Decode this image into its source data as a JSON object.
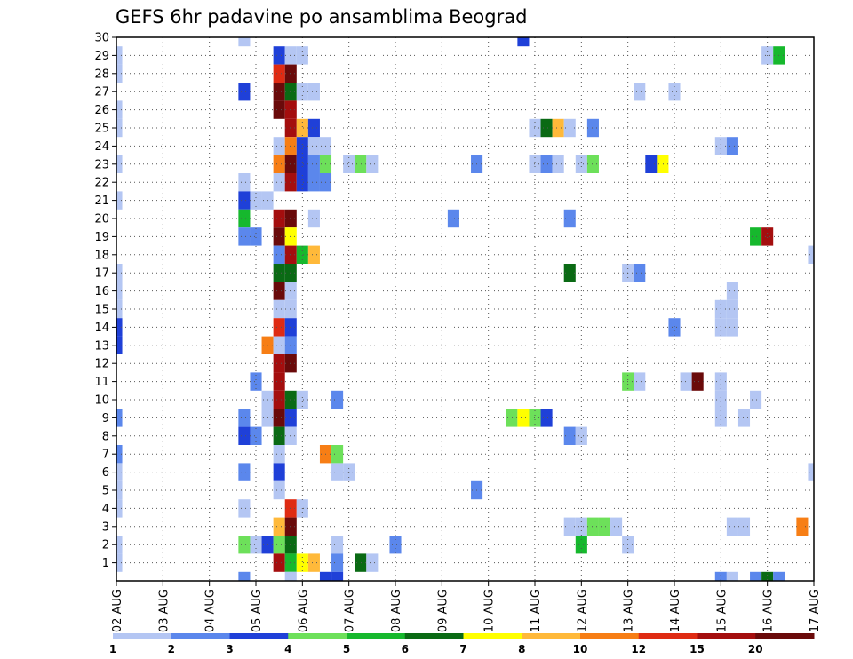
{
  "chart_data": {
    "type": "heatmap",
    "title": "GEFS 6hr padavine po ansamblima Beograd",
    "xlabel": "",
    "ylabel": "",
    "x_ticks": [
      "02 AUG",
      "03 AUG",
      "04 AUG",
      "05 AUG",
      "06 AUG",
      "07 AUG",
      "08 AUG",
      "09 AUG",
      "10 AUG",
      "11 AUG",
      "12 AUG",
      "13 AUG",
      "14 AUG",
      "15 AUG",
      "16 AUG",
      "17 AUG"
    ],
    "y_ticks": [
      "1",
      "2",
      "3",
      "4",
      "5",
      "6",
      "7",
      "8",
      "9",
      "10",
      "11",
      "12",
      "13",
      "14",
      "15",
      "16",
      "17",
      "18",
      "19",
      "20",
      "21",
      "22",
      "23",
      "24",
      "25",
      "26",
      "27",
      "28",
      "29",
      "30"
    ],
    "x_unit": "6-hour step from 02 AUG 00Z",
    "x_range": [
      0,
      60
    ],
    "y_range": [
      0,
      30
    ],
    "grid": true,
    "colorbar": {
      "labels": [
        "1",
        "2",
        "3",
        "4",
        "5",
        "6",
        "7",
        "8",
        "10",
        "12",
        "15",
        "20"
      ],
      "colors": [
        "#b4c6f3",
        "#5b87ec",
        "#1f40d8",
        "#6de05a",
        "#16b82d",
        "#0a6a14",
        "#ffff00",
        "#ffb93a",
        "#f77e15",
        "#df2b13",
        "#a40e0e",
        "#6a0a0a"
      ]
    },
    "cells": [
      {
        "x": 0,
        "y": 29,
        "c": 1
      },
      {
        "x": 0,
        "y": 28,
        "c": 1
      },
      {
        "x": 0,
        "y": 26,
        "c": 1
      },
      {
        "x": 0,
        "y": 25,
        "c": 1
      },
      {
        "x": 0,
        "y": 23,
        "c": 1
      },
      {
        "x": 0,
        "y": 21,
        "c": 1
      },
      {
        "x": 0,
        "y": 17,
        "c": 1
      },
      {
        "x": 0,
        "y": 16,
        "c": 1
      },
      {
        "x": 0,
        "y": 15,
        "c": 1
      },
      {
        "x": 0,
        "y": 14,
        "c": 3
      },
      {
        "x": 0,
        "y": 13,
        "c": 3
      },
      {
        "x": 0,
        "y": 9,
        "c": 2
      },
      {
        "x": 0,
        "y": 7,
        "c": 2
      },
      {
        "x": 0,
        "y": 6,
        "c": 1
      },
      {
        "x": 0,
        "y": 5,
        "c": 1
      },
      {
        "x": 0,
        "y": 4,
        "c": 1
      },
      {
        "x": 0,
        "y": 2,
        "c": 1
      },
      {
        "x": 0,
        "y": 1,
        "c": 1
      },
      {
        "x": 11,
        "y": 30,
        "c": 1
      },
      {
        "x": 11,
        "y": 27,
        "c": 3
      },
      {
        "x": 11,
        "y": 22,
        "c": 1
      },
      {
        "x": 11,
        "y": 21,
        "c": 3
      },
      {
        "x": 11,
        "y": 20,
        "c": 5
      },
      {
        "x": 11,
        "y": 19,
        "c": 2
      },
      {
        "x": 11,
        "y": 9,
        "c": 2
      },
      {
        "x": 11,
        "y": 8,
        "c": 3
      },
      {
        "x": 11,
        "y": 6,
        "c": 2
      },
      {
        "x": 11,
        "y": 4,
        "c": 1
      },
      {
        "x": 11,
        "y": 2,
        "c": 4
      },
      {
        "x": 11,
        "y": 0,
        "c": 2
      },
      {
        "x": 12,
        "y": 21,
        "c": 1
      },
      {
        "x": 12,
        "y": 19,
        "c": 2
      },
      {
        "x": 12,
        "y": 11,
        "c": 2
      },
      {
        "x": 12,
        "y": 8,
        "c": 2
      },
      {
        "x": 12,
        "y": 2,
        "c": 1
      },
      {
        "x": 13,
        "y": 21,
        "c": 1
      },
      {
        "x": 13,
        "y": 13,
        "c": 9
      },
      {
        "x": 13,
        "y": 10,
        "c": 1
      },
      {
        "x": 13,
        "y": 9,
        "c": 1
      },
      {
        "x": 13,
        "y": 2,
        "c": 3
      },
      {
        "x": 14,
        "y": 29,
        "c": 3
      },
      {
        "x": 14,
        "y": 28,
        "c": 10
      },
      {
        "x": 14,
        "y": 27,
        "c": 12
      },
      {
        "x": 14,
        "y": 26,
        "c": 12
      },
      {
        "x": 14,
        "y": 24,
        "c": 1
      },
      {
        "x": 14,
        "y": 23,
        "c": 9
      },
      {
        "x": 14,
        "y": 22,
        "c": 1
      },
      {
        "x": 14,
        "y": 20,
        "c": 11
      },
      {
        "x": 14,
        "y": 19,
        "c": 12
      },
      {
        "x": 14,
        "y": 18,
        "c": 2
      },
      {
        "x": 14,
        "y": 17,
        "c": 6
      },
      {
        "x": 14,
        "y": 16,
        "c": 12
      },
      {
        "x": 14,
        "y": 15,
        "c": 1
      },
      {
        "x": 14,
        "y": 14,
        "c": 10
      },
      {
        "x": 14,
        "y": 13,
        "c": 1
      },
      {
        "x": 14,
        "y": 12,
        "c": 11
      },
      {
        "x": 14,
        "y": 11,
        "c": 11
      },
      {
        "x": 14,
        "y": 10,
        "c": 11
      },
      {
        "x": 14,
        "y": 9,
        "c": 12
      },
      {
        "x": 14,
        "y": 8,
        "c": 6
      },
      {
        "x": 14,
        "y": 7,
        "c": 1
      },
      {
        "x": 14,
        "y": 6,
        "c": 3
      },
      {
        "x": 14,
        "y": 5,
        "c": 1
      },
      {
        "x": 14,
        "y": 3,
        "c": 8
      },
      {
        "x": 14,
        "y": 2,
        "c": 4
      },
      {
        "x": 14,
        "y": 1,
        "c": 11
      },
      {
        "x": 15,
        "y": 29,
        "c": 1
      },
      {
        "x": 15,
        "y": 28,
        "c": 12
      },
      {
        "x": 15,
        "y": 27,
        "c": 6
      },
      {
        "x": 15,
        "y": 26,
        "c": 11
      },
      {
        "x": 15,
        "y": 25,
        "c": 11
      },
      {
        "x": 15,
        "y": 24,
        "c": 9
      },
      {
        "x": 15,
        "y": 23,
        "c": 12
      },
      {
        "x": 15,
        "y": 22,
        "c": 11
      },
      {
        "x": 15,
        "y": 20,
        "c": 12
      },
      {
        "x": 15,
        "y": 19,
        "c": 7
      },
      {
        "x": 15,
        "y": 18,
        "c": 11
      },
      {
        "x": 15,
        "y": 17,
        "c": 6
      },
      {
        "x": 15,
        "y": 16,
        "c": 1
      },
      {
        "x": 15,
        "y": 15,
        "c": 1
      },
      {
        "x": 15,
        "y": 14,
        "c": 3
      },
      {
        "x": 15,
        "y": 13,
        "c": 2
      },
      {
        "x": 15,
        "y": 12,
        "c": 12
      },
      {
        "x": 15,
        "y": 10,
        "c": 6
      },
      {
        "x": 15,
        "y": 9,
        "c": 3
      },
      {
        "x": 15,
        "y": 8,
        "c": 1
      },
      {
        "x": 15,
        "y": 4,
        "c": 10
      },
      {
        "x": 15,
        "y": 3,
        "c": 12
      },
      {
        "x": 15,
        "y": 2,
        "c": 6
      },
      {
        "x": 15,
        "y": 1,
        "c": 5
      },
      {
        "x": 15,
        "y": 0,
        "c": 1
      },
      {
        "x": 16,
        "y": 29,
        "c": 1
      },
      {
        "x": 16,
        "y": 27,
        "c": 1
      },
      {
        "x": 16,
        "y": 25,
        "c": 8
      },
      {
        "x": 16,
        "y": 24,
        "c": 3
      },
      {
        "x": 16,
        "y": 23,
        "c": 3
      },
      {
        "x": 16,
        "y": 22,
        "c": 3
      },
      {
        "x": 16,
        "y": 18,
        "c": 5
      },
      {
        "x": 16,
        "y": 10,
        "c": 1
      },
      {
        "x": 16,
        "y": 4,
        "c": 1
      },
      {
        "x": 16,
        "y": 1,
        "c": 7
      },
      {
        "x": 17,
        "y": 27,
        "c": 1
      },
      {
        "x": 17,
        "y": 25,
        "c": 3
      },
      {
        "x": 17,
        "y": 24,
        "c": 1
      },
      {
        "x": 17,
        "y": 23,
        "c": 2
      },
      {
        "x": 17,
        "y": 22,
        "c": 2
      },
      {
        "x": 17,
        "y": 20,
        "c": 1
      },
      {
        "x": 17,
        "y": 18,
        "c": 8
      },
      {
        "x": 17,
        "y": 1,
        "c": 8
      },
      {
        "x": 18,
        "y": 24,
        "c": 1
      },
      {
        "x": 18,
        "y": 23,
        "c": 4
      },
      {
        "x": 18,
        "y": 22,
        "c": 2
      },
      {
        "x": 18,
        "y": 7,
        "c": 9
      },
      {
        "x": 18,
        "y": 0,
        "c": 3
      },
      {
        "x": 19,
        "y": 10,
        "c": 2
      },
      {
        "x": 19,
        "y": 7,
        "c": 4
      },
      {
        "x": 19,
        "y": 6,
        "c": 1
      },
      {
        "x": 19,
        "y": 2,
        "c": 1
      },
      {
        "x": 19,
        "y": 1,
        "c": 2
      },
      {
        "x": 19,
        "y": 0,
        "c": 3
      },
      {
        "x": 20,
        "y": 23,
        "c": 1
      },
      {
        "x": 20,
        "y": 6,
        "c": 1
      },
      {
        "x": 21,
        "y": 23,
        "c": 4
      },
      {
        "x": 21,
        "y": 1,
        "c": 6
      },
      {
        "x": 22,
        "y": 23,
        "c": 1
      },
      {
        "x": 22,
        "y": 1,
        "c": 1
      },
      {
        "x": 24,
        "y": 2,
        "c": 2
      },
      {
        "x": 29,
        "y": 20,
        "c": 2
      },
      {
        "x": 31,
        "y": 23,
        "c": 2
      },
      {
        "x": 31,
        "y": 5,
        "c": 2
      },
      {
        "x": 34,
        "y": 9,
        "c": 4
      },
      {
        "x": 35,
        "y": 30,
        "c": 3
      },
      {
        "x": 35,
        "y": 9,
        "c": 7
      },
      {
        "x": 36,
        "y": 25,
        "c": 1
      },
      {
        "x": 36,
        "y": 23,
        "c": 1
      },
      {
        "x": 36,
        "y": 9,
        "c": 4
      },
      {
        "x": 37,
        "y": 25,
        "c": 6
      },
      {
        "x": 37,
        "y": 23,
        "c": 2
      },
      {
        "x": 37,
        "y": 9,
        "c": 3
      },
      {
        "x": 38,
        "y": 25,
        "c": 8
      },
      {
        "x": 38,
        "y": 23,
        "c": 1
      },
      {
        "x": 39,
        "y": 25,
        "c": 1
      },
      {
        "x": 39,
        "y": 20,
        "c": 2
      },
      {
        "x": 39,
        "y": 17,
        "c": 6
      },
      {
        "x": 39,
        "y": 8,
        "c": 2
      },
      {
        "x": 39,
        "y": 3,
        "c": 1
      },
      {
        "x": 40,
        "y": 23,
        "c": 1
      },
      {
        "x": 40,
        "y": 8,
        "c": 1
      },
      {
        "x": 40,
        "y": 3,
        "c": 1
      },
      {
        "x": 40,
        "y": 2,
        "c": 5
      },
      {
        "x": 41,
        "y": 25,
        "c": 2
      },
      {
        "x": 41,
        "y": 23,
        "c": 4
      },
      {
        "x": 41,
        "y": 3,
        "c": 4
      },
      {
        "x": 42,
        "y": 3,
        "c": 4
      },
      {
        "x": 43,
        "y": 3,
        "c": 1
      },
      {
        "x": 44,
        "y": 17,
        "c": 1
      },
      {
        "x": 44,
        "y": 11,
        "c": 4
      },
      {
        "x": 44,
        "y": 2,
        "c": 1
      },
      {
        "x": 45,
        "y": 27,
        "c": 1
      },
      {
        "x": 45,
        "y": 17,
        "c": 2
      },
      {
        "x": 45,
        "y": 11,
        "c": 1
      },
      {
        "x": 46,
        "y": 23,
        "c": 3
      },
      {
        "x": 47,
        "y": 23,
        "c": 7
      },
      {
        "x": 48,
        "y": 27,
        "c": 1
      },
      {
        "x": 48,
        "y": 14,
        "c": 2
      },
      {
        "x": 49,
        "y": 11,
        "c": 1
      },
      {
        "x": 50,
        "y": 11,
        "c": 12
      },
      {
        "x": 52,
        "y": 24,
        "c": 1
      },
      {
        "x": 52,
        "y": 15,
        "c": 1
      },
      {
        "x": 52,
        "y": 14,
        "c": 1
      },
      {
        "x": 52,
        "y": 11,
        "c": 1
      },
      {
        "x": 52,
        "y": 10,
        "c": 1
      },
      {
        "x": 52,
        "y": 9,
        "c": 1
      },
      {
        "x": 52,
        "y": 0,
        "c": 2
      },
      {
        "x": 53,
        "y": 24,
        "c": 2
      },
      {
        "x": 53,
        "y": 16,
        "c": 1
      },
      {
        "x": 53,
        "y": 15,
        "c": 1
      },
      {
        "x": 53,
        "y": 14,
        "c": 1
      },
      {
        "x": 53,
        "y": 3,
        "c": 1
      },
      {
        "x": 53,
        "y": 0,
        "c": 1
      },
      {
        "x": 54,
        "y": 9,
        "c": 1
      },
      {
        "x": 54,
        "y": 3,
        "c": 1
      },
      {
        "x": 55,
        "y": 19,
        "c": 5
      },
      {
        "x": 55,
        "y": 10,
        "c": 1
      },
      {
        "x": 55,
        "y": 0,
        "c": 2
      },
      {
        "x": 56,
        "y": 29,
        "c": 1
      },
      {
        "x": 56,
        "y": 19,
        "c": 11
      },
      {
        "x": 56,
        "y": 0,
        "c": 6
      },
      {
        "x": 57,
        "y": 29,
        "c": 5
      },
      {
        "x": 57,
        "y": 0,
        "c": 2
      },
      {
        "x": 59,
        "y": 3,
        "c": 9
      },
      {
        "x": 60,
        "y": 18,
        "c": 1
      },
      {
        "x": 60,
        "y": 6,
        "c": 1
      }
    ]
  }
}
